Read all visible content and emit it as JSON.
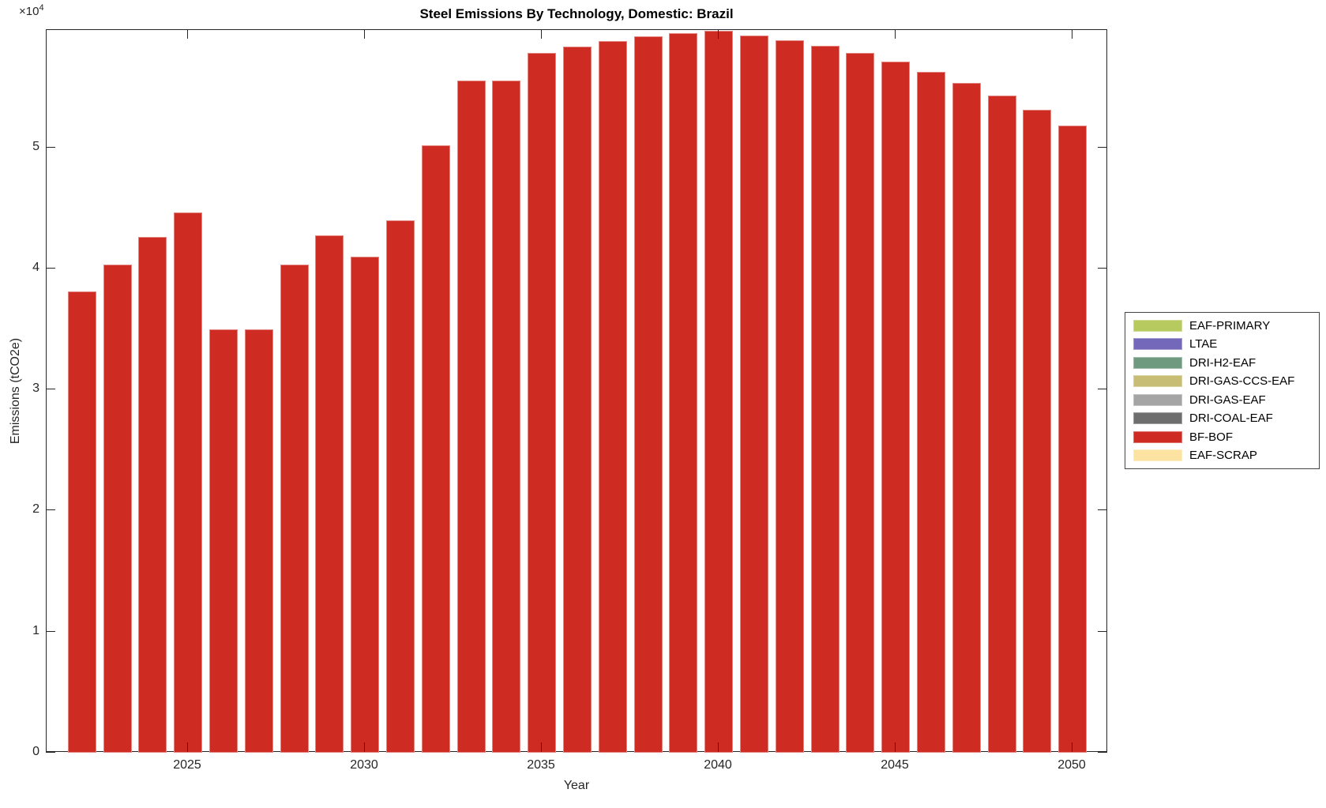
{
  "figure": {
    "title": "Steel Emissions By Technology, Domestic: Brazil",
    "xlabel": "Year",
    "ylabel": "Emissions (tCO2e)",
    "offset_base": "×10",
    "offset_exp": "4"
  },
  "chart_data": {
    "type": "bar",
    "title": "Steel Emissions By Technology, Domestic: Brazil",
    "xlabel": "Year",
    "ylabel": "Emissions (tCO2e)",
    "x": [
      2022,
      2023,
      2024,
      2025,
      2026,
      2027,
      2028,
      2029,
      2030,
      2031,
      2032,
      2033,
      2034,
      2035,
      2036,
      2037,
      2038,
      2039,
      2040,
      2041,
      2042,
      2043,
      2044,
      2045,
      2046,
      2047,
      2048,
      2049,
      2050
    ],
    "series": [
      {
        "name": "BF-BOF",
        "color": "#ce2b23",
        "values": [
          38100,
          40350,
          42600,
          44650,
          35000,
          35000,
          40350,
          42750,
          40950,
          44000,
          50200,
          55500,
          55500,
          57800,
          58350,
          58800,
          59200,
          59450,
          59650,
          59250,
          58850,
          58400,
          57800,
          57100,
          56250,
          55350,
          54300,
          53100,
          51800
        ]
      }
    ],
    "xlim": [
      2021,
      2051
    ],
    "ylim": [
      0,
      59700
    ],
    "x_ticks": [
      2025,
      2030,
      2035,
      2040,
      2045,
      2050
    ],
    "y_ticks": [
      0,
      1,
      2,
      3,
      4,
      5
    ],
    "y_tick_scale": 10000,
    "y_axis_offset_text": "×10⁴",
    "bar_width_fraction": 0.8,
    "grid": false,
    "legend_position": "outside-right",
    "legend": [
      {
        "label": "EAF-PRIMARY",
        "color": "#b7ca60"
      },
      {
        "label": "LTAE",
        "color": "#7468bb"
      },
      {
        "label": "DRI-H2-EAF",
        "color": "#6f9a80"
      },
      {
        "label": "DRI-GAS-CCS-EAF",
        "color": "#c7bd74"
      },
      {
        "label": "DRI-GAS-EAF",
        "color": "#a5a5a5"
      },
      {
        "label": "DRI-COAL-EAF",
        "color": "#6e6e6e"
      },
      {
        "label": "BF-BOF",
        "color": "#ce2b23"
      },
      {
        "label": "EAF-SCRAP",
        "color": "#fce3a1"
      }
    ]
  }
}
